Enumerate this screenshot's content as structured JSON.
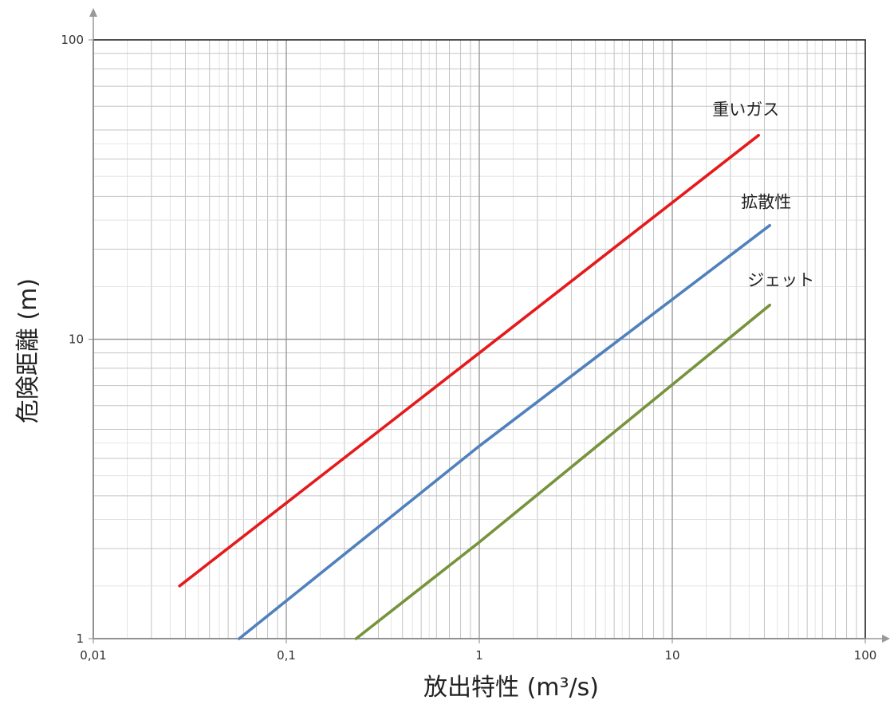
{
  "chart_data": {
    "type": "line",
    "xscale": "log",
    "yscale": "log",
    "xlim": [
      0.01,
      100
    ],
    "ylim": [
      1,
      100
    ],
    "xlabel": "放出特性 (m³/s)",
    "ylabel": "危険距離 (m)",
    "x_ticks": [
      {
        "value": 0.01,
        "label": "0,01"
      },
      {
        "value": 0.1,
        "label": "0,1"
      },
      {
        "value": 1,
        "label": "1"
      },
      {
        "value": 10,
        "label": "10"
      },
      {
        "value": 100,
        "label": "100"
      }
    ],
    "y_ticks": [
      {
        "value": 1,
        "label": "1"
      },
      {
        "value": 10,
        "label": "10"
      },
      {
        "value": 100,
        "label": "100"
      }
    ],
    "grid": true,
    "series": [
      {
        "name": "重いガス",
        "color": "#e41a1c",
        "x": [
          0.028,
          1,
          28
        ],
        "y": [
          1.5,
          9,
          48
        ]
      },
      {
        "name": "拡散性",
        "color": "#4f81bd",
        "x": [
          0.057,
          1,
          32
        ],
        "y": [
          1,
          4.4,
          24
        ]
      },
      {
        "name": "ジェット",
        "color": "#77933c",
        "x": [
          0.23,
          1,
          32
        ],
        "y": [
          1,
          2.1,
          13
        ]
      }
    ]
  }
}
